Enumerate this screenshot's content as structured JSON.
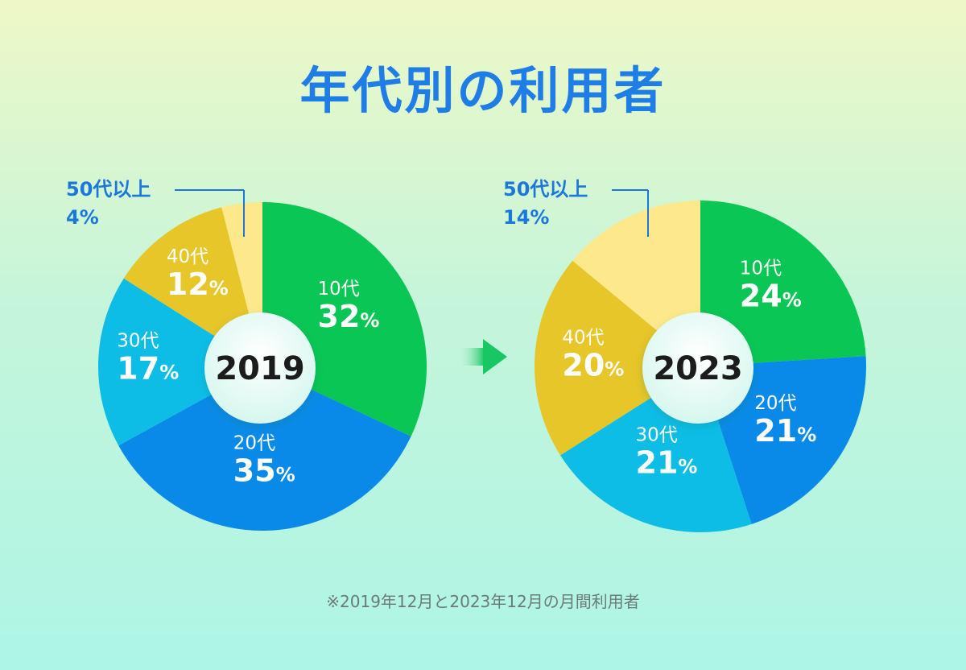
{
  "title": "年代別の利用者",
  "footnote": "※2019年12月と2023年12月の月間利用者",
  "colors": {
    "title": "#1e7ee6",
    "callout": "#1b78db",
    "slice_10s": "#0ac654",
    "slice_20s": "#0a8ae8",
    "slice_30s": "#0dbde6",
    "slice_40s": "#e6c629",
    "slice_50s": "#fde98b"
  },
  "chart_data": [
    {
      "type": "pie",
      "title": "2019",
      "categories": [
        "10代",
        "20代",
        "30代",
        "40代",
        "50代以上"
      ],
      "values": [
        32,
        35,
        17,
        12,
        4
      ],
      "value_labels": [
        "32%",
        "35%",
        "17%",
        "12%",
        "4%"
      ]
    },
    {
      "type": "pie",
      "title": "2023",
      "categories": [
        "10代",
        "20代",
        "30代",
        "40代",
        "50代以上"
      ],
      "values": [
        24,
        21,
        21,
        20,
        14
      ],
      "value_labels": [
        "24%",
        "21%",
        "21%",
        "20%",
        "14%"
      ]
    }
  ]
}
